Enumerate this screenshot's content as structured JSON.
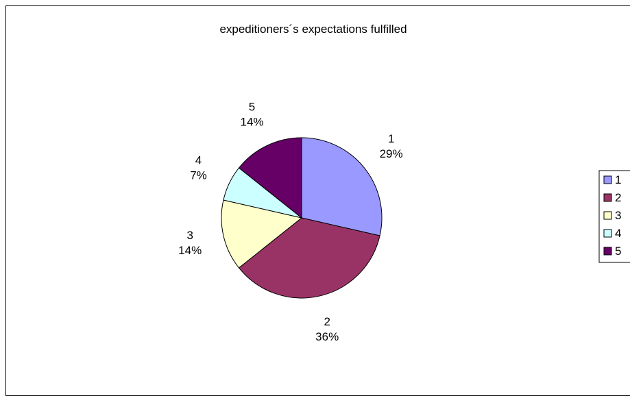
{
  "chart_data": {
    "type": "pie",
    "title": "expeditioners´s expectations fulfilled",
    "categories": [
      "1",
      "2",
      "3",
      "4",
      "5"
    ],
    "values": [
      4,
      5,
      2,
      1,
      2
    ],
    "percent_labels": [
      "29%",
      "36%",
      "14%",
      "7%",
      "14%"
    ],
    "colors": [
      "#9999ff",
      "#993366",
      "#ffffcc",
      "#ccffff",
      "#660066"
    ],
    "legend": {
      "position": "right",
      "entries": [
        "1",
        "2",
        "3",
        "4",
        "5"
      ]
    },
    "start_angle_deg": 0,
    "direction": "clockwise"
  }
}
